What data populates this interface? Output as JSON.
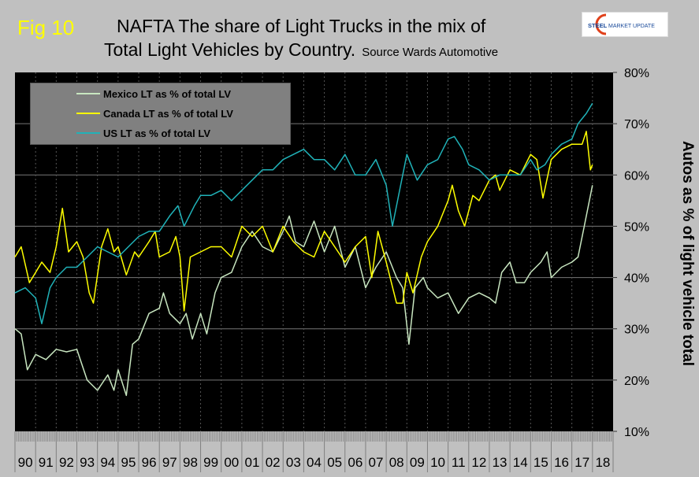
{
  "header": {
    "fig_label": "Fig 10",
    "title_line1": "NAFTA   The share of Light Trucks in the mix of",
    "title_line2": "Total Light Vehicles by Country.",
    "source": "Source Wards Automotive",
    "logo_text": "STEEL MARKET UPDATE"
  },
  "chart_data": {
    "type": "line",
    "title": "NAFTA   The share of Light Trucks in the mix of Total Light Vehicles by Country.",
    "ylabel": "Autos as % of light vehicle total",
    "xlabel": "",
    "ylim": [
      10,
      80
    ],
    "xlim": [
      1990,
      2019
    ],
    "y_axis_side": "right",
    "y_ticks": [
      "80%",
      "70%",
      "60%",
      "50%",
      "40%",
      "30%",
      "20%",
      "10%"
    ],
    "y_tick_values": [
      80,
      70,
      60,
      50,
      40,
      30,
      20,
      10
    ],
    "x_tick_labels": [
      "90",
      "91",
      "92",
      "93",
      "94",
      "95",
      "96",
      "97",
      "98",
      "99",
      "00",
      "01",
      "02",
      "03",
      "04",
      "05",
      "06",
      "07",
      "08",
      "09",
      "10",
      "11",
      "12",
      "13",
      "14",
      "15",
      "16",
      "17",
      "18"
    ],
    "grid": true,
    "background": "#000000",
    "legend_position": "top-left",
    "series": [
      {
        "name": "Mexico LT as % of total LV",
        "color": "#c8e6c0",
        "x": [
          1990.0,
          1990.3,
          1990.6,
          1991.0,
          1991.5,
          1992.0,
          1992.5,
          1993.0,
          1993.5,
          1994.0,
          1994.5,
          1994.8,
          1995.0,
          1995.4,
          1995.7,
          1996.0,
          1996.5,
          1997.0,
          1997.2,
          1997.5,
          1998.0,
          1998.3,
          1998.6,
          1999.0,
          1999.3,
          1999.7,
          2000.0,
          2000.5,
          2001.0,
          2001.5,
          2002.0,
          2002.5,
          2003.0,
          2003.3,
          2003.6,
          2004.0,
          2004.5,
          2005.0,
          2005.5,
          2006.0,
          2006.5,
          2007.0,
          2007.5,
          2008.0,
          2008.5,
          2008.8,
          2009.1,
          2009.4,
          2009.8,
          2010.0,
          2010.5,
          2011.0,
          2011.5,
          2012.0,
          2012.5,
          2013.0,
          2013.3,
          2013.6,
          2014.0,
          2014.3,
          2014.7,
          2015.0,
          2015.5,
          2015.8,
          2016.0,
          2016.5,
          2017.0,
          2017.3,
          2017.6,
          2018.0
        ],
        "values": [
          30,
          29,
          22,
          25,
          24,
          26,
          25.5,
          26,
          20,
          18,
          21,
          18,
          22,
          17,
          27,
          28,
          33,
          34,
          37,
          33,
          31,
          33,
          28,
          33,
          29,
          37,
          40,
          41,
          46,
          49,
          46,
          45,
          49,
          52,
          47,
          46,
          51,
          45,
          50,
          42,
          46,
          38,
          42,
          45,
          40,
          38,
          27,
          38,
          40,
          38,
          36,
          37,
          33,
          36,
          37,
          36,
          35,
          41,
          43,
          39,
          39,
          41,
          43,
          45,
          40,
          42,
          43,
          44,
          50,
          58
        ]
      },
      {
        "name": "Canada LT as % of total LV",
        "color": "#ffff00",
        "x": [
          1990.0,
          1990.3,
          1990.7,
          1991.0,
          1991.3,
          1991.7,
          1992.0,
          1992.3,
          1992.6,
          1993.0,
          1993.3,
          1993.6,
          1993.8,
          1994.2,
          1994.5,
          1994.8,
          1995.0,
          1995.4,
          1995.8,
          1996.0,
          1996.5,
          1996.8,
          1997.0,
          1997.5,
          1997.8,
          1998.0,
          1998.2,
          1998.5,
          1999.0,
          1999.5,
          2000.0,
          2000.5,
          2001.0,
          2001.5,
          2002.0,
          2002.5,
          2003.0,
          2003.5,
          2004.0,
          2004.5,
          2005.0,
          2005.5,
          2006.0,
          2006.5,
          2007.0,
          2007.3,
          2007.6,
          2008.0,
          2008.5,
          2008.8,
          2009.0,
          2009.3,
          2009.7,
          2010.0,
          2010.5,
          2011.0,
          2011.2,
          2011.5,
          2011.8,
          2012.2,
          2012.5,
          2013.0,
          2013.3,
          2013.5,
          2014.0,
          2014.5,
          2015.0,
          2015.3,
          2015.6,
          2016.0,
          2016.5,
          2017.0,
          2017.5,
          2017.7,
          2017.9,
          2018.0
        ],
        "values": [
          44,
          46,
          39,
          41,
          43,
          41,
          46,
          53.5,
          45,
          47,
          44,
          37,
          35,
          46,
          49.5,
          45,
          46,
          40.5,
          45,
          44,
          47,
          49,
          44,
          45,
          48,
          44,
          33.5,
          44,
          45,
          46,
          46,
          44,
          50,
          48,
          50,
          45,
          50,
          47,
          45,
          44,
          49,
          46,
          43,
          46,
          48,
          40,
          49,
          43,
          35,
          35,
          41,
          37,
          44,
          47,
          50,
          55,
          58,
          53,
          50,
          56,
          55,
          59,
          60,
          57,
          61,
          60,
          64,
          63,
          55.5,
          63,
          65,
          66,
          66,
          68.5,
          61,
          62
        ]
      },
      {
        "name": "US LT as % of total LV",
        "color": "#20b2b8",
        "x": [
          1990.0,
          1990.5,
          1991.0,
          1991.3,
          1991.7,
          1992.0,
          1992.5,
          1993.0,
          1993.5,
          1994.0,
          1994.5,
          1995.0,
          1995.5,
          1996.0,
          1996.5,
          1997.0,
          1997.5,
          1997.9,
          1998.2,
          1998.7,
          1999.0,
          1999.5,
          2000.0,
          2000.5,
          2001.0,
          2001.5,
          2002.0,
          2002.5,
          2003.0,
          2003.5,
          2004.0,
          2004.5,
          2005.0,
          2005.5,
          2006.0,
          2006.5,
          2007.0,
          2007.5,
          2008.0,
          2008.3,
          2008.7,
          2009.0,
          2009.5,
          2010.0,
          2010.5,
          2011.0,
          2011.3,
          2011.7,
          2012.0,
          2012.5,
          2013.0,
          2013.5,
          2014.0,
          2014.5,
          2015.0,
          2015.3,
          2015.7,
          2016.0,
          2016.5,
          2017.0,
          2017.3,
          2017.7,
          2018.0
        ],
        "values": [
          37,
          38,
          36,
          31,
          38,
          40,
          42,
          42,
          44,
          46,
          45,
          44,
          46,
          48,
          49,
          49,
          52,
          54,
          50,
          54,
          56,
          56,
          57,
          55,
          57,
          59,
          61,
          61,
          63,
          64,
          65,
          63,
          63,
          61,
          64,
          60,
          60,
          63,
          58,
          50,
          58,
          64,
          59,
          62,
          63,
          67,
          67.5,
          65,
          62,
          61,
          59,
          60,
          60,
          60,
          63,
          61,
          62,
          64,
          66,
          67,
          70,
          72,
          74
        ]
      }
    ]
  }
}
